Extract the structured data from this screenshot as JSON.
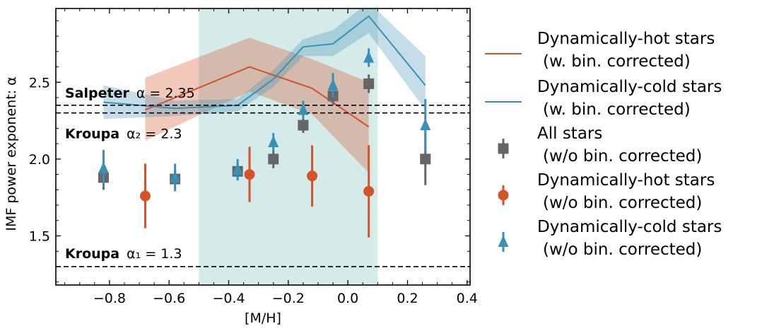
{
  "chart_data": {
    "type": "scatter",
    "xlabel": "[M/H]",
    "ylabel": "IMF power exponent: α",
    "xlim": [
      -0.98,
      0.41
    ],
    "ylim": [
      1.18,
      2.98
    ],
    "xticks": [
      -0.8,
      -0.6,
      -0.4,
      -0.2,
      0.0,
      0.2,
      0.4
    ],
    "xtick_labels": [
      "−0.8",
      "−0.6",
      "−0.4",
      "−0.2",
      "0.0",
      "0.2",
      "0.4"
    ],
    "yticks": [
      1.5,
      2.0,
      2.5
    ],
    "ytick_labels": [
      "1.5",
      "2.0",
      "2.5"
    ],
    "grid": false,
    "legend_position": "outside-right",
    "shaded_region": {
      "x": [
        -0.5,
        0.1
      ],
      "color": "#d4ebea"
    },
    "reference_lines": [
      {
        "name": "Salpeter",
        "equation": "α = 2.35",
        "y": 2.35
      },
      {
        "name": "Kroupa",
        "equation": "α₂ = 2.3",
        "y": 2.3
      },
      {
        "name": "Kroupa",
        "equation": "α₁ = 1.3",
        "y": 1.3
      }
    ],
    "series": [
      {
        "name": "Dynamically-hot stars\n(w. bin. corrected)",
        "kind": "line-band",
        "color": "#d45327",
        "x": [
          -0.68,
          -0.33,
          -0.12,
          0.07
        ],
        "y": [
          2.32,
          2.6,
          2.46,
          2.21
        ],
        "lower": [
          2.12,
          2.44,
          2.29,
          1.91
        ],
        "upper": [
          2.53,
          2.79,
          2.65,
          2.5
        ]
      },
      {
        "name": "Dynamically-cold stars\n(w. bin. corrected)",
        "kind": "line-band",
        "color": "#3a8fb7",
        "x": [
          -0.82,
          -0.58,
          -0.37,
          -0.25,
          -0.15,
          -0.05,
          0.07,
          0.26
        ],
        "y": [
          2.37,
          2.33,
          2.35,
          2.52,
          2.73,
          2.75,
          2.93,
          2.48
        ],
        "lower": [
          2.26,
          2.28,
          2.31,
          2.47,
          2.67,
          2.67,
          2.82,
          2.32
        ],
        "upper": [
          2.48,
          2.38,
          2.39,
          2.58,
          2.78,
          2.84,
          3.02,
          2.67
        ]
      },
      {
        "name": "All stars\n(w/o bin. corrected)",
        "kind": "errorbar",
        "marker": "square",
        "color": "#666666",
        "x": [
          -0.82,
          -0.58,
          -0.37,
          -0.25,
          -0.15,
          -0.05,
          0.07,
          0.26
        ],
        "y": [
          1.88,
          1.87,
          1.92,
          2.0,
          2.22,
          2.41,
          2.49,
          2.0
        ],
        "err": [
          0.08,
          0.06,
          0.05,
          0.06,
          0.05,
          0.06,
          0.06,
          0.17
        ]
      },
      {
        "name": "Dynamically-hot stars\n(w/o bin. corrected)",
        "kind": "errorbar",
        "marker": "circle",
        "color": "#d45327",
        "x": [
          -0.68,
          -0.33,
          -0.12,
          0.07
        ],
        "y": [
          1.76,
          1.9,
          1.89,
          1.79
        ],
        "err": [
          0.21,
          0.18,
          0.2,
          0.3
        ]
      },
      {
        "name": "Dynamically-cold stars\n(w/o bin. corrected)",
        "kind": "errorbar",
        "marker": "triangle",
        "color": "#3a8fb7",
        "x": [
          -0.82,
          -0.58,
          -0.37,
          -0.25,
          -0.15,
          -0.05,
          0.07,
          0.26
        ],
        "y": [
          1.94,
          1.88,
          1.93,
          2.11,
          2.32,
          2.48,
          2.66,
          2.22
        ],
        "err": [
          0.12,
          0.09,
          0.07,
          0.06,
          0.06,
          0.08,
          0.06,
          0.17
        ]
      }
    ]
  }
}
